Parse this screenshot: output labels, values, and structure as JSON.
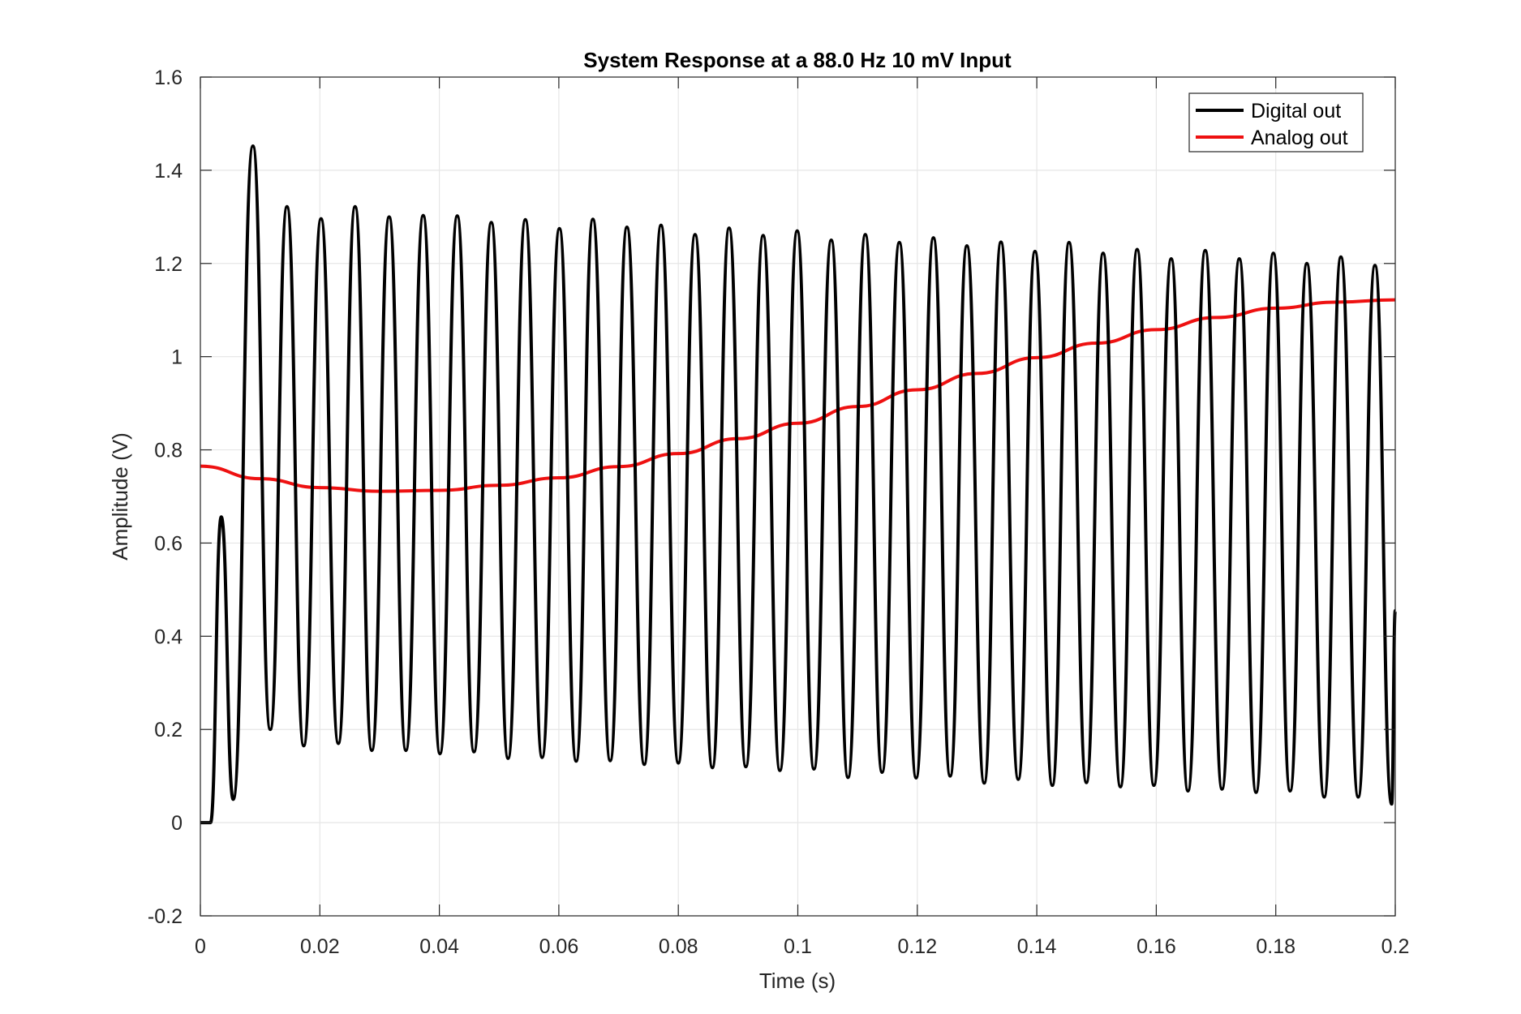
{
  "chart_data": {
    "type": "line",
    "title": "System Response at a 88.0 Hz 10 mV Input",
    "xlabel": "Time (s)",
    "ylabel": "Amplitude (V)",
    "xlim": [
      0,
      0.2
    ],
    "ylim": [
      -0.2,
      1.6
    ],
    "x_ticks": [
      0,
      0.02,
      0.04,
      0.06,
      0.08,
      0.1,
      0.12,
      0.14,
      0.16,
      0.18,
      0.2
    ],
    "x_tick_labels": [
      "0",
      "0.02",
      "0.04",
      "0.06",
      "0.08",
      "0.1",
      "0.12",
      "0.14",
      "0.16",
      "0.18",
      "0.2"
    ],
    "y_ticks": [
      -0.2,
      0,
      0.2,
      0.4,
      0.6,
      0.8,
      1,
      1.2,
      1.4,
      1.6
    ],
    "y_tick_labels": [
      "-0.2",
      "0",
      "0.2",
      "0.4",
      "0.6",
      "0.8",
      "1",
      "1.2",
      "1.4",
      "1.6"
    ],
    "grid": true,
    "legend_position": "top-right",
    "series": [
      {
        "name": "Digital out",
        "color": "#000000",
        "points": [
          [
            0.0,
            0.0
          ],
          [
            0.0017,
            0.0
          ],
          [
            0.0035,
            0.656
          ],
          [
            0.0055,
            0.05
          ],
          [
            0.0088,
            1.452
          ],
          [
            0.0117,
            0.2
          ],
          [
            0.0145,
            1.322
          ],
          [
            0.0173,
            0.165
          ],
          [
            0.0202,
            1.296
          ],
          [
            0.0231,
            0.17
          ],
          [
            0.0259,
            1.322
          ],
          [
            0.0287,
            0.155
          ],
          [
            0.0316,
            1.3
          ],
          [
            0.0344,
            0.155
          ],
          [
            0.0373,
            1.303
          ],
          [
            0.0401,
            0.148
          ],
          [
            0.043,
            1.302
          ],
          [
            0.0458,
            0.152
          ],
          [
            0.0487,
            1.288
          ],
          [
            0.0515,
            0.138
          ],
          [
            0.0544,
            1.294
          ],
          [
            0.0572,
            0.14
          ],
          [
            0.0601,
            1.275
          ],
          [
            0.0629,
            0.132
          ],
          [
            0.0657,
            1.295
          ],
          [
            0.0686,
            0.133
          ],
          [
            0.0714,
            1.278
          ],
          [
            0.0743,
            0.125
          ],
          [
            0.0771,
            1.282
          ],
          [
            0.08,
            0.128
          ],
          [
            0.0828,
            1.262
          ],
          [
            0.0857,
            0.118
          ],
          [
            0.0885,
            1.276
          ],
          [
            0.0913,
            0.12
          ],
          [
            0.0942,
            1.26
          ],
          [
            0.097,
            0.112
          ],
          [
            0.0999,
            1.27
          ],
          [
            0.1027,
            0.115
          ],
          [
            0.1056,
            1.25
          ],
          [
            0.1084,
            0.097
          ],
          [
            0.1113,
            1.262
          ],
          [
            0.1141,
            0.108
          ],
          [
            0.117,
            1.245
          ],
          [
            0.1198,
            0.096
          ],
          [
            0.1227,
            1.255
          ],
          [
            0.1255,
            0.1
          ],
          [
            0.1283,
            1.238
          ],
          [
            0.1312,
            0.085
          ],
          [
            0.134,
            1.246
          ],
          [
            0.1369,
            0.093
          ],
          [
            0.1397,
            1.226
          ],
          [
            0.1426,
            0.08
          ],
          [
            0.1454,
            1.245
          ],
          [
            0.1483,
            0.086
          ],
          [
            0.1511,
            1.222
          ],
          [
            0.154,
            0.077
          ],
          [
            0.1568,
            1.23
          ],
          [
            0.1596,
            0.08
          ],
          [
            0.1625,
            1.21
          ],
          [
            0.1653,
            0.068
          ],
          [
            0.1682,
            1.228
          ],
          [
            0.171,
            0.072
          ],
          [
            0.1739,
            1.21
          ],
          [
            0.1767,
            0.065
          ],
          [
            0.1796,
            1.222
          ],
          [
            0.1824,
            0.068
          ],
          [
            0.1852,
            1.2
          ],
          [
            0.1881,
            0.055
          ],
          [
            0.1909,
            1.214
          ],
          [
            0.1938,
            0.055
          ],
          [
            0.1966,
            1.196
          ],
          [
            0.1994,
            0.04
          ],
          [
            0.2,
            0.455
          ]
        ]
      },
      {
        "name": "Analog out",
        "color": "#ee1111",
        "points": [
          [
            0.0,
            0.765
          ],
          [
            0.01,
            0.738
          ],
          [
            0.02,
            0.719
          ],
          [
            0.03,
            0.711
          ],
          [
            0.04,
            0.713
          ],
          [
            0.05,
            0.724
          ],
          [
            0.06,
            0.74
          ],
          [
            0.07,
            0.764
          ],
          [
            0.08,
            0.792
          ],
          [
            0.09,
            0.824
          ],
          [
            0.1,
            0.857
          ],
          [
            0.11,
            0.893
          ],
          [
            0.12,
            0.929
          ],
          [
            0.13,
            0.964
          ],
          [
            0.14,
            0.998
          ],
          [
            0.15,
            1.029
          ],
          [
            0.16,
            1.058
          ],
          [
            0.17,
            1.084
          ],
          [
            0.18,
            1.104
          ],
          [
            0.19,
            1.117
          ],
          [
            0.2,
            1.122
          ]
        ]
      }
    ]
  }
}
